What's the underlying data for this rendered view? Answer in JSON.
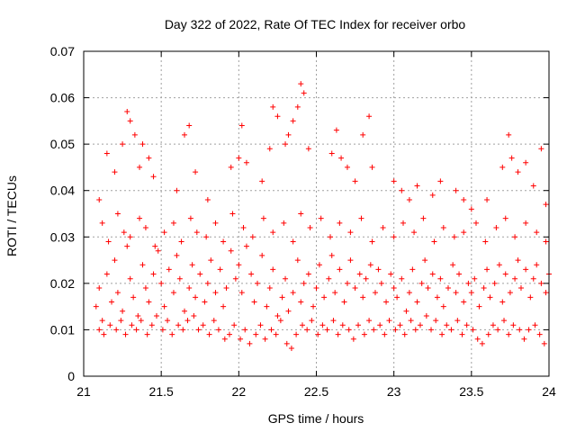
{
  "chart_data": {
    "type": "scatter",
    "title": "Day 322 of 2022, Rate Of TEC Index for receiver orbo",
    "xlabel": "GPS time / hours",
    "ylabel": "ROTI / TECUs",
    "xlim": [
      21,
      24
    ],
    "ylim": [
      0,
      0.07
    ],
    "x_ticks": [
      "21",
      "21.5",
      "22",
      "22.5",
      "23",
      "23.5",
      "24"
    ],
    "y_ticks": [
      "0",
      "0.01",
      "0.02",
      "0.03",
      "0.04",
      "0.05",
      "0.06",
      "0.07"
    ],
    "grid": true,
    "marker": "+",
    "color": "#ff0000",
    "series": [
      {
        "x": [
          21.08,
          21.1,
          21.12,
          21.15,
          21.18,
          21.2,
          21.22,
          21.25,
          21.28,
          21.3,
          21.32,
          21.35,
          21.38,
          21.4,
          21.42,
          21.45,
          21.48,
          21.5,
          21.52,
          21.55,
          21.58,
          21.6,
          21.62,
          21.65,
          21.68,
          21.7,
          21.72,
          21.75,
          21.78,
          21.8,
          21.82,
          21.85,
          21.88,
          21.9,
          21.92,
          21.95,
          21.98,
          22.0,
          22.02,
          22.05,
          22.08,
          22.1,
          22.12,
          22.15,
          22.18,
          22.2,
          22.22,
          22.25,
          22.28,
          22.3,
          22.32,
          22.35,
          22.38,
          22.4,
          22.42,
          22.45,
          22.48,
          22.5,
          22.52,
          22.55,
          22.58,
          22.6,
          22.62,
          22.65,
          22.68,
          22.7,
          22.72,
          22.75,
          22.78,
          22.8,
          22.82,
          22.85,
          22.88,
          22.9,
          22.92,
          22.95,
          22.98,
          23.0,
          23.02,
          23.05,
          23.08,
          23.1,
          23.12,
          23.15,
          23.18,
          23.2,
          23.22,
          23.25,
          23.28,
          23.3,
          23.32,
          23.35,
          23.38,
          23.4,
          23.42,
          23.45,
          23.48,
          23.5,
          23.52,
          23.55,
          23.58,
          23.6,
          23.62,
          23.65,
          23.68,
          23.7,
          23.72,
          23.75,
          23.78,
          23.8,
          23.82,
          23.85,
          23.88,
          23.9,
          23.92,
          23.95,
          23.98,
          24.0
        ],
        "y": [
          0.015,
          0.019,
          0.012,
          0.022,
          0.016,
          0.025,
          0.018,
          0.014,
          0.028,
          0.021,
          0.017,
          0.013,
          0.024,
          0.019,
          0.016,
          0.022,
          0.027,
          0.02,
          0.015,
          0.023,
          0.018,
          0.026,
          0.021,
          0.014,
          0.019,
          0.024,
          0.017,
          0.022,
          0.016,
          0.02,
          0.025,
          0.018,
          0.023,
          0.015,
          0.019,
          0.027,
          0.021,
          0.024,
          0.018,
          0.028,
          0.022,
          0.016,
          0.02,
          0.026,
          0.015,
          0.019,
          0.023,
          0.013,
          0.017,
          0.021,
          0.014,
          0.018,
          0.025,
          0.016,
          0.02,
          0.022,
          0.015,
          0.019,
          0.024,
          0.017,
          0.021,
          0.026,
          0.018,
          0.023,
          0.016,
          0.02,
          0.025,
          0.019,
          0.022,
          0.017,
          0.021,
          0.024,
          0.018,
          0.023,
          0.02,
          0.016,
          0.022,
          0.019,
          0.017,
          0.021,
          0.014,
          0.018,
          0.023,
          0.016,
          0.02,
          0.025,
          0.019,
          0.022,
          0.017,
          0.021,
          0.015,
          0.019,
          0.024,
          0.018,
          0.022,
          0.016,
          0.02,
          0.018,
          0.021,
          0.015,
          0.019,
          0.023,
          0.017,
          0.02,
          0.024,
          0.016,
          0.022,
          0.018,
          0.021,
          0.025,
          0.019,
          0.023,
          0.017,
          0.021,
          0.024,
          0.02,
          0.018,
          0.022
        ]
      },
      {
        "x": [
          21.1,
          21.13,
          21.17,
          21.21,
          21.24,
          21.27,
          21.31,
          21.34,
          21.37,
          21.41,
          21.44,
          21.47,
          21.51,
          21.54,
          21.57,
          21.61,
          21.64,
          21.67,
          21.71,
          21.74,
          21.77,
          21.81,
          21.84,
          21.87,
          21.91,
          21.94,
          21.97,
          22.01,
          22.04,
          22.07,
          22.11,
          22.14,
          22.17,
          22.21,
          22.24,
          22.27,
          22.31,
          22.34,
          22.37,
          22.41,
          22.44,
          22.47,
          22.51,
          22.54,
          22.57,
          22.61,
          22.64,
          22.67,
          22.71,
          22.74,
          22.77,
          22.81,
          22.84,
          22.87,
          22.91,
          22.94,
          22.97,
          23.01,
          23.04,
          23.07,
          23.11,
          23.14,
          23.17,
          23.21,
          23.24,
          23.27,
          23.31,
          23.34,
          23.37,
          23.41,
          23.44,
          23.47,
          23.51,
          23.54,
          23.57,
          23.61,
          23.64,
          23.67,
          23.71,
          23.74,
          23.77,
          23.81,
          23.84,
          23.87,
          23.91,
          23.94,
          23.97
        ],
        "y": [
          0.01,
          0.009,
          0.011,
          0.01,
          0.012,
          0.009,
          0.011,
          0.01,
          0.012,
          0.009,
          0.011,
          0.013,
          0.01,
          0.012,
          0.009,
          0.011,
          0.01,
          0.012,
          0.013,
          0.01,
          0.011,
          0.009,
          0.012,
          0.01,
          0.008,
          0.009,
          0.011,
          0.008,
          0.01,
          0.007,
          0.009,
          0.011,
          0.008,
          0.01,
          0.009,
          0.012,
          0.007,
          0.006,
          0.009,
          0.011,
          0.01,
          0.012,
          0.009,
          0.011,
          0.01,
          0.012,
          0.009,
          0.011,
          0.01,
          0.008,
          0.011,
          0.009,
          0.012,
          0.01,
          0.011,
          0.009,
          0.012,
          0.01,
          0.011,
          0.009,
          0.012,
          0.01,
          0.011,
          0.013,
          0.01,
          0.012,
          0.009,
          0.011,
          0.01,
          0.012,
          0.009,
          0.011,
          0.01,
          0.008,
          0.007,
          0.009,
          0.011,
          0.01,
          0.012,
          0.009,
          0.011,
          0.01,
          0.008,
          0.01,
          0.011,
          0.009,
          0.007
        ]
      },
      {
        "x": [
          21.12,
          21.16,
          21.22,
          21.26,
          21.3,
          21.36,
          21.4,
          21.46,
          21.52,
          21.58,
          21.63,
          21.69,
          21.73,
          21.79,
          21.85,
          21.9,
          21.96,
          22.03,
          22.09,
          22.16,
          22.22,
          22.29,
          22.35,
          22.4,
          22.46,
          22.53,
          22.59,
          22.65,
          22.72,
          22.79,
          22.86,
          22.93,
          23.0,
          23.06,
          23.13,
          23.19,
          23.26,
          23.32,
          23.39,
          23.45,
          23.53,
          23.59,
          23.66,
          23.72,
          23.78,
          23.85,
          23.92,
          23.98
        ],
        "y": [
          0.033,
          0.029,
          0.035,
          0.031,
          0.03,
          0.034,
          0.032,
          0.028,
          0.031,
          0.033,
          0.029,
          0.034,
          0.031,
          0.03,
          0.033,
          0.029,
          0.035,
          0.032,
          0.03,
          0.034,
          0.031,
          0.033,
          0.029,
          0.035,
          0.032,
          0.034,
          0.03,
          0.033,
          0.031,
          0.034,
          0.029,
          0.032,
          0.03,
          0.033,
          0.031,
          0.034,
          0.029,
          0.032,
          0.03,
          0.031,
          0.033,
          0.029,
          0.032,
          0.034,
          0.03,
          0.033,
          0.031,
          0.029
        ]
      },
      {
        "x": [
          21.1,
          21.15,
          21.2,
          21.25,
          21.28,
          21.3,
          21.33,
          21.36,
          21.38,
          21.42,
          21.45,
          21.6,
          21.65,
          21.68,
          21.72,
          21.8,
          21.95,
          22.0,
          22.02,
          22.05,
          22.15,
          22.2,
          22.22,
          22.25,
          22.3,
          22.32,
          22.35,
          22.38,
          22.4,
          22.42,
          22.45,
          22.6,
          22.63,
          22.66,
          22.7,
          22.75,
          22.8,
          22.84,
          22.86,
          23.0,
          23.05,
          23.1,
          23.15,
          23.25,
          23.3,
          23.4,
          23.45,
          23.5,
          23.6,
          23.7,
          23.74,
          23.76,
          23.8,
          23.85,
          23.9,
          23.95,
          23.98
        ],
        "y": [
          0.038,
          0.048,
          0.044,
          0.05,
          0.057,
          0.055,
          0.052,
          0.045,
          0.05,
          0.047,
          0.043,
          0.04,
          0.052,
          0.054,
          0.044,
          0.038,
          0.045,
          0.047,
          0.054,
          0.046,
          0.042,
          0.049,
          0.058,
          0.056,
          0.05,
          0.052,
          0.055,
          0.058,
          0.063,
          0.061,
          0.049,
          0.048,
          0.053,
          0.047,
          0.045,
          0.042,
          0.052,
          0.056,
          0.045,
          0.042,
          0.04,
          0.038,
          0.041,
          0.039,
          0.042,
          0.04,
          0.038,
          0.036,
          0.038,
          0.045,
          0.052,
          0.047,
          0.044,
          0.046,
          0.041,
          0.049,
          0.037
        ]
      }
    ]
  }
}
